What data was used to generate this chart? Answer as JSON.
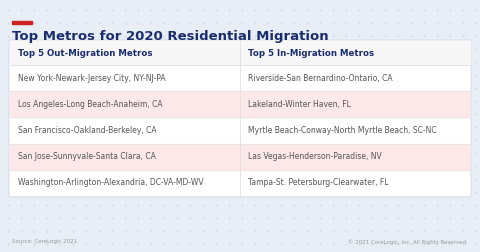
{
  "title": "Top Metros for 2020 Residential Migration",
  "accent_color": "#cc2222",
  "background_color": "#e8eef5",
  "table_background": "#ffffff",
  "header_col1": "Top 5 Out-Migration Metros",
  "header_col2": "Top 5 In-Migration Metros",
  "header_color": "#1a2d6e",
  "out_migration": [
    "New York-Newark-Jersey City, NY-NJ-PA",
    "Los Angeles-Long Beach-Anaheim, CA",
    "San Francisco-Oakland-Berkeley, CA",
    "San Jose-Sunnyvale-Santa Clara, CA",
    "Washington-Arlington-Alexandria, DC-VA-MD-WV"
  ],
  "in_migration": [
    "Riverside-San Bernardino-Ontario, CA",
    "Lakeland-Winter Haven, FL",
    "Myrtle Beach-Conway-North Myrtle Beach, SC-NC",
    "Las Vegas-Henderson-Paradise, NV",
    "Tampa-St. Petersburg-Clearwater, FL"
  ],
  "row_highlight": [
    1,
    3
  ],
  "highlight_color": "#fce8e8",
  "row_text_color": "#555555",
  "source_left": "Source: CoreLogic 2021",
  "source_right": "© 2021 CoreLogic, Inc. All Rights Reserved.",
  "source_color": "#999999",
  "title_color": "#1a2d6e",
  "dot_color": "#c8d4e0",
  "border_color": "#d0d8e0",
  "divider_color": "#e0e0e0"
}
